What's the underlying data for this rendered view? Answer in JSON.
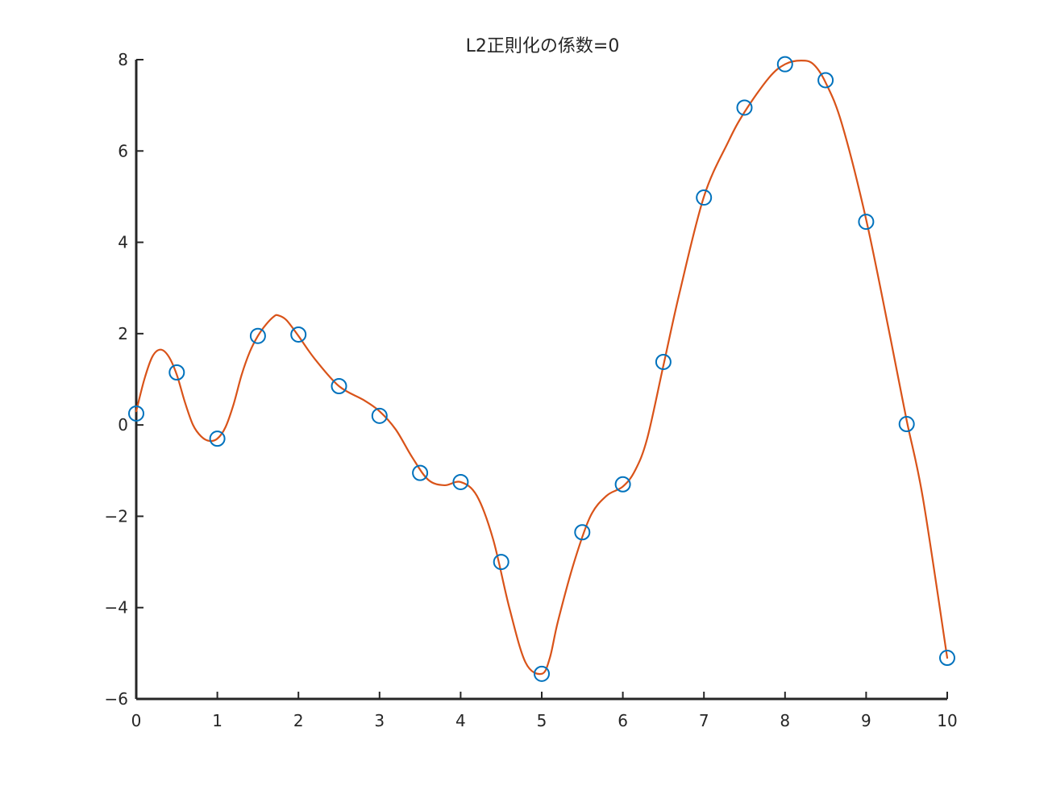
{
  "chart_data": {
    "type": "scatter",
    "title": "L2正則化の係数=0",
    "xlabel": "",
    "ylabel": "",
    "xlim": [
      0,
      10
    ],
    "ylim": [
      -6,
      8
    ],
    "xticks": [
      0,
      1,
      2,
      3,
      4,
      5,
      6,
      7,
      8,
      9,
      10
    ],
    "yticks": [
      -6,
      -4,
      -2,
      0,
      2,
      4,
      6,
      8
    ],
    "grid": false,
    "series": [
      {
        "kind": "markers",
        "marker": "circle",
        "color": "#0072BD",
        "x": [
          0,
          0.5,
          1,
          1.5,
          2,
          2.5,
          3,
          3.5,
          4,
          4.5,
          5,
          5.5,
          6,
          6.5,
          7,
          7.5,
          8,
          8.5,
          9,
          9.5,
          10
        ],
        "y": [
          0.25,
          1.15,
          -0.3,
          1.95,
          1.98,
          0.85,
          0.2,
          -1.05,
          -1.25,
          -3.0,
          -5.45,
          -2.35,
          -1.3,
          1.38,
          4.98,
          6.95,
          7.9,
          7.55,
          4.45,
          0.02,
          -5.1
        ]
      },
      {
        "kind": "line",
        "color": "#D95319",
        "x": [
          0,
          0.1,
          0.2,
          0.3,
          0.4,
          0.5,
          0.6,
          0.7,
          0.8,
          0.9,
          1.0,
          1.1,
          1.2,
          1.3,
          1.4,
          1.5,
          1.6,
          1.7,
          1.75,
          1.85,
          2.0,
          2.2,
          2.5,
          2.8,
          3.0,
          3.2,
          3.4,
          3.6,
          3.8,
          4.0,
          4.2,
          4.4,
          4.6,
          4.8,
          5.0,
          5.1,
          5.2,
          5.4,
          5.6,
          5.8,
          6.0,
          6.15,
          6.3,
          6.5,
          6.7,
          7.0,
          7.3,
          7.5,
          7.8,
          8.0,
          8.2,
          8.35,
          8.5,
          8.7,
          9.0,
          9.3,
          9.5,
          9.7,
          10.0
        ],
        "y": [
          0.3,
          1.0,
          1.5,
          1.65,
          1.5,
          1.1,
          0.5,
          0.0,
          -0.25,
          -0.35,
          -0.3,
          -0.05,
          0.45,
          1.1,
          1.6,
          1.95,
          2.2,
          2.38,
          2.4,
          2.3,
          1.95,
          1.45,
          0.85,
          0.55,
          0.3,
          -0.1,
          -0.7,
          -1.2,
          -1.32,
          -1.25,
          -1.55,
          -2.5,
          -4.0,
          -5.2,
          -5.45,
          -5.1,
          -4.3,
          -3.0,
          -2.0,
          -1.55,
          -1.35,
          -1.0,
          -0.3,
          1.3,
          2.9,
          5.0,
          6.2,
          6.85,
          7.6,
          7.9,
          7.98,
          7.9,
          7.5,
          6.6,
          4.5,
          1.9,
          0.1,
          -1.6,
          -5.1
        ]
      }
    ]
  }
}
